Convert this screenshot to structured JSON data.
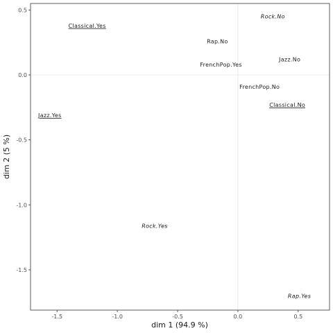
{
  "chart_data": {
    "type": "scatter",
    "xlabel": "dim 1 (94.9 %)",
    "ylabel": "dim 2 (5 %)",
    "xlim": [
      -1.72,
      0.76
    ],
    "ylim": [
      -1.81,
      0.55
    ],
    "x_ticks": [
      -1.5,
      -1.0,
      -0.5,
      0.0,
      0.5
    ],
    "x_tick_labels": [
      "-1.5",
      "-1.0",
      "-0.5",
      "0.0",
      "0.5"
    ],
    "y_ticks": [
      -1.5,
      -1.0,
      -0.5,
      0.0,
      0.5
    ],
    "y_tick_labels": [
      "-1.5",
      "-1.0",
      "-0.5",
      "0.0",
      "0.5"
    ],
    "reference_lines": {
      "x": 0,
      "y": 0
    },
    "grid": false,
    "points": [
      {
        "label": "Rock.No",
        "x": 0.29,
        "y": 0.45,
        "style": "italic"
      },
      {
        "label": "Classical.Yes",
        "x": -1.25,
        "y": 0.38,
        "style": "underline"
      },
      {
        "label": "Rap.No",
        "x": -0.17,
        "y": 0.26,
        "style": "plain"
      },
      {
        "label": "Jazz.No",
        "x": 0.43,
        "y": 0.12,
        "style": "plain"
      },
      {
        "label": "FrenchPop.Yes",
        "x": -0.14,
        "y": 0.08,
        "style": "plain"
      },
      {
        "label": "FrenchPop.No",
        "x": 0.18,
        "y": -0.09,
        "style": "plain"
      },
      {
        "label": "Classical.No",
        "x": 0.41,
        "y": -0.23,
        "style": "underline"
      },
      {
        "label": "Jazz.Yes",
        "x": -1.56,
        "y": -0.31,
        "style": "underline"
      },
      {
        "label": "Rock.Yes",
        "x": -0.69,
        "y": -1.16,
        "style": "italic"
      },
      {
        "label": "Rap.Yes",
        "x": 0.51,
        "y": -1.7,
        "style": "italic"
      }
    ]
  }
}
